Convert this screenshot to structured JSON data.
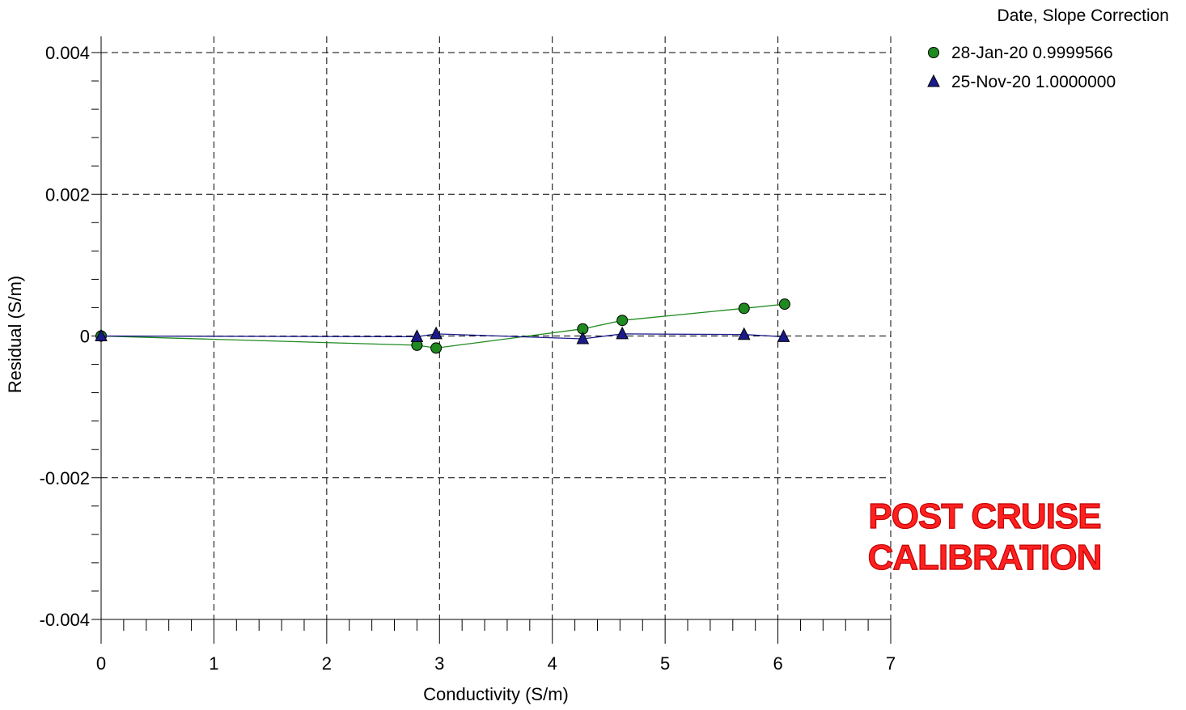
{
  "chart_data": {
    "type": "line",
    "title": "",
    "xlabel": "Conductivity (S/m)",
    "ylabel": "Residual (S/m)",
    "xlim": [
      0,
      7
    ],
    "ylim": [
      -0.004,
      0.004
    ],
    "x_ticks": [
      0,
      1,
      2,
      3,
      4,
      5,
      6,
      7
    ],
    "x_tick_labels": [
      "0",
      "1",
      "2",
      "3",
      "4",
      "5",
      "6",
      "7"
    ],
    "y_ticks": [
      -0.004,
      -0.002,
      0,
      0.002,
      0.004
    ],
    "y_tick_labels": [
      "-0.004",
      "-0.002",
      "0",
      "0.002",
      "0.004"
    ],
    "grid": true,
    "legend": {
      "title": "Date, Slope Correction",
      "placement": "top-right"
    },
    "series": [
      {
        "name": "28-Jan-20 0.9999566",
        "marker": "circle",
        "color": "#1f8a1f",
        "x": [
          0.0,
          2.8,
          2.97,
          4.27,
          4.62,
          5.7,
          6.06
        ],
        "y": [
          0.0,
          -0.00013,
          -0.00017,
          0.0001,
          0.00022,
          0.00039,
          0.00045
        ]
      },
      {
        "name": "25-Nov-20 1.0000000",
        "marker": "triangle",
        "color": "#1a1a8c",
        "x": [
          0.0,
          2.8,
          2.97,
          4.27,
          4.62,
          5.7,
          6.05
        ],
        "y": [
          0.0,
          -1e-05,
          3e-05,
          -4e-05,
          3e-05,
          2e-05,
          -1e-05
        ]
      }
    ],
    "annotations": [
      {
        "text_lines": [
          "POST CRUISE",
          "CALIBRATION"
        ],
        "color": "#ff2020",
        "placement": "lower-right"
      }
    ]
  }
}
